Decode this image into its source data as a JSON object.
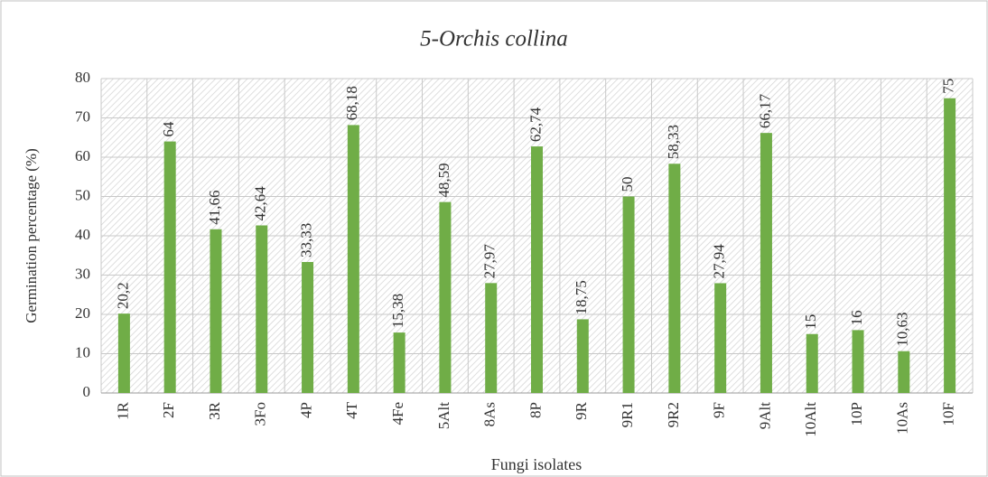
{
  "chart_data": {
    "type": "bar",
    "title": "5-Orchis collina",
    "x_label": "Fungi isolates",
    "y_label": "Germination percentage (%)",
    "categories": [
      "1R",
      "2F",
      "3R",
      "3Fo",
      "4P",
      "4T",
      "4Fe",
      "5Alt",
      "8As",
      "8P",
      "9R",
      "9R1",
      "9R2",
      "9F",
      "9Alt",
      "10Alt",
      "10P",
      "10As",
      "10F"
    ],
    "values": [
      20.2,
      64,
      41.66,
      42.64,
      33.33,
      68.18,
      15.38,
      48.59,
      27.97,
      62.74,
      18.75,
      50,
      58.33,
      27.94,
      66.17,
      15,
      16,
      10.63,
      75
    ],
    "value_labels": [
      "20,2",
      "64",
      "41,66",
      "42,64",
      "33,33",
      "68,18",
      "15,38",
      "48,59",
      "27,97",
      "62,74",
      "18,75",
      "50",
      "58,33",
      "27,94",
      "66,17",
      "15",
      "16",
      "10,63",
      "75"
    ],
    "color": "#70ad47",
    "ylim": [
      0,
      80
    ],
    "yticks": [
      0,
      10,
      20,
      30,
      40,
      50,
      60,
      70,
      80
    ],
    "grid": true
  }
}
